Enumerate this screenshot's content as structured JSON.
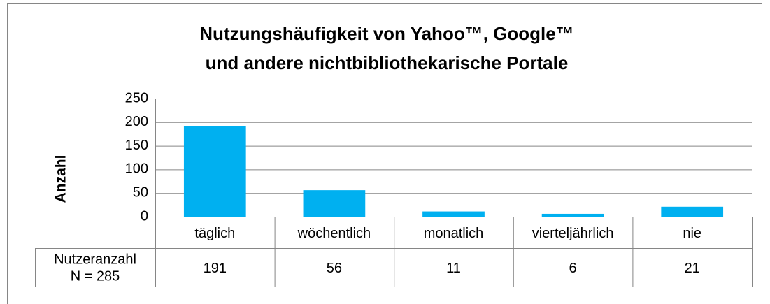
{
  "chart_data": {
    "type": "bar",
    "title": [
      "Nutzungshäufigkeit  von Yahoo™, Google™",
      "und andere nichtbibliothekarische Portale"
    ],
    "y_label": "Anzahl",
    "categories": [
      "täglich",
      "wöchentlich",
      "monatlich",
      "vierteljährlich",
      "nie"
    ],
    "values": [
      191,
      56,
      11,
      6,
      21
    ],
    "color": "#00b0f0",
    "ylim": [
      0,
      250
    ],
    "yticks": [
      0,
      50,
      100,
      150,
      200,
      250
    ],
    "grid": true,
    "data_table": {
      "row_label": [
        "Nutzeranzahl",
        "N = 285"
      ]
    }
  }
}
